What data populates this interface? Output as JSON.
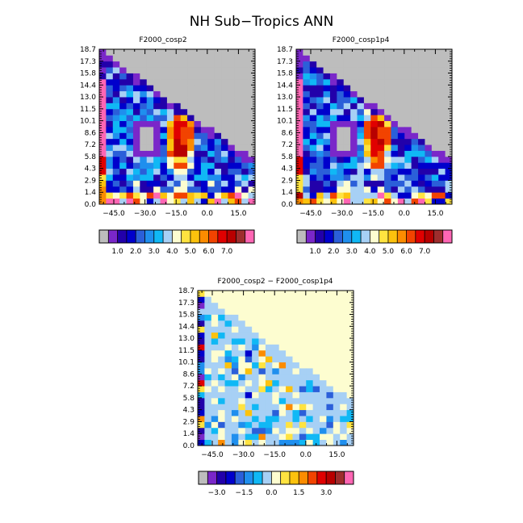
{
  "figure_title": "NH Sub−Tropics ANN",
  "chart_data": [
    {
      "type": "heatmap",
      "title": "F2000_cosp2",
      "x_tick_labels": [
        "−45.0",
        "−30.0",
        "−15.0",
        "0.0",
        "15.0"
      ],
      "x_tick_values": [
        -45,
        -30,
        -15,
        0,
        15
      ],
      "xlim": [
        -52,
        23
      ],
      "y_tick_labels": [
        "0.0",
        "1.4",
        "2.9",
        "4.3",
        "5.8",
        "7.2",
        "8.6",
        "10.1",
        "11.5",
        "13.0",
        "14.4",
        "15.8",
        "17.3",
        "18.7"
      ],
      "ylim": [
        0,
        18.7
      ],
      "colorbar_labels": [
        "1.0",
        "2.0",
        "3.0",
        "4.0",
        "5.0",
        "6.0",
        "7.0"
      ],
      "colors": [
        "#bdbdbd",
        "#7a27c9",
        "#2200aa",
        "#0000cc",
        "#2b5fd9",
        "#1f8fee",
        "#10b8f5",
        "#a7d0f5",
        "#fdfdd0",
        "#ffe340",
        "#fcc20d",
        "#fc8c00",
        "#f24300",
        "#e00000",
        "#b80000",
        "#9e2d2d",
        "#ff66b4"
      ]
    },
    {
      "type": "heatmap",
      "title": "F2000_cosp1p4",
      "x_tick_labels": [
        "−45.0",
        "−30.0",
        "−15.0",
        "0.0",
        "15.0"
      ],
      "x_tick_values": [
        -45,
        -30,
        -15,
        0,
        15
      ],
      "xlim": [
        -52,
        23
      ],
      "y_tick_labels": [
        "0.0",
        "1.4",
        "2.9",
        "4.3",
        "5.8",
        "7.2",
        "8.6",
        "10.1",
        "11.5",
        "13.0",
        "14.4",
        "15.8",
        "17.3",
        "18.7"
      ],
      "ylim": [
        0,
        18.7
      ],
      "colorbar_labels": [
        "1.0",
        "2.0",
        "3.0",
        "4.0",
        "5.0",
        "6.0",
        "7.0"
      ],
      "colors": [
        "#bdbdbd",
        "#7a27c9",
        "#2200aa",
        "#0000cc",
        "#2b5fd9",
        "#1f8fee",
        "#10b8f5",
        "#a7d0f5",
        "#fdfdd0",
        "#ffe340",
        "#fcc20d",
        "#fc8c00",
        "#f24300",
        "#e00000",
        "#b80000",
        "#9e2d2d",
        "#ff66b4"
      ]
    },
    {
      "type": "heatmap",
      "title": "F2000_cosp2 − F2000_cosp1p4",
      "x_tick_labels": [
        "−45.0",
        "−30.0",
        "−15.0",
        "0.0",
        "15.0"
      ],
      "x_tick_values": [
        -45,
        -30,
        -15,
        0,
        15
      ],
      "xlim": [
        -52,
        23
      ],
      "y_tick_labels": [
        "0.0",
        "1.4",
        "2.9",
        "4.3",
        "5.8",
        "7.2",
        "8.6",
        "10.1",
        "11.5",
        "13.0",
        "14.4",
        "15.8",
        "17.3",
        "18.7"
      ],
      "ylim": [
        0,
        18.7
      ],
      "colorbar_labels": [
        "−3.0",
        "−1.5",
        "0.0",
        "1.5",
        "3.0"
      ],
      "colors": [
        "#bdbdbd",
        "#7a27c9",
        "#2200aa",
        "#0000cc",
        "#2b5fd9",
        "#1f8fee",
        "#10b8f5",
        "#a7d0f5",
        "#fdfdd0",
        "#ffe340",
        "#fcc20d",
        "#fc8c00",
        "#f24300",
        "#e00000",
        "#b80000",
        "#9e2d2d",
        "#ff66b4"
      ]
    }
  ]
}
